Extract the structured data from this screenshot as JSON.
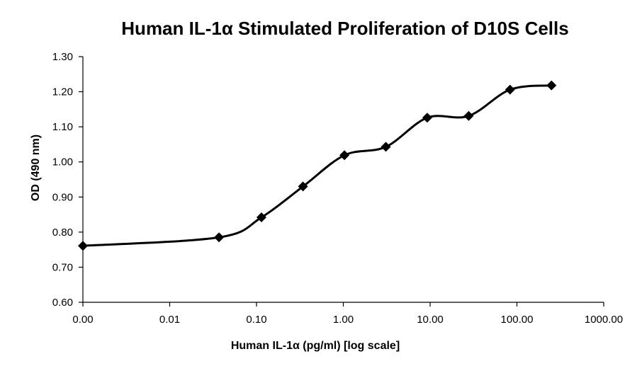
{
  "chart_data": {
    "type": "line",
    "title": "Human IL-1α Stimulated Proliferation of D10S Cells",
    "xlabel": "Human IL-1α (pg/ml) [log scale]",
    "ylabel": "OD (490 nm)",
    "x_scale": "log",
    "x_ticks": [
      "0.00",
      "0.01",
      "0.10",
      "1.00",
      "10.00",
      "100.00",
      "1000.00"
    ],
    "y_ticks": [
      "0.60",
      "0.70",
      "0.80",
      "0.90",
      "1.00",
      "1.10",
      "1.20",
      "1.30"
    ],
    "xlim": [
      0.001,
      1000
    ],
    "ylim": [
      0.6,
      1.3
    ],
    "grid": false,
    "legend": "none",
    "line_color": "#000000",
    "marker": "diamond",
    "smooth": true,
    "series": [
      {
        "x": [
          0.001,
          0.037,
          0.114,
          0.343,
          1.03,
          3.09,
          9.26,
          27.8,
          83.3,
          250
        ],
        "y": [
          0.761,
          0.785,
          0.842,
          0.93,
          1.019,
          1.043,
          1.126,
          1.131,
          1.206,
          1.218
        ]
      }
    ]
  }
}
